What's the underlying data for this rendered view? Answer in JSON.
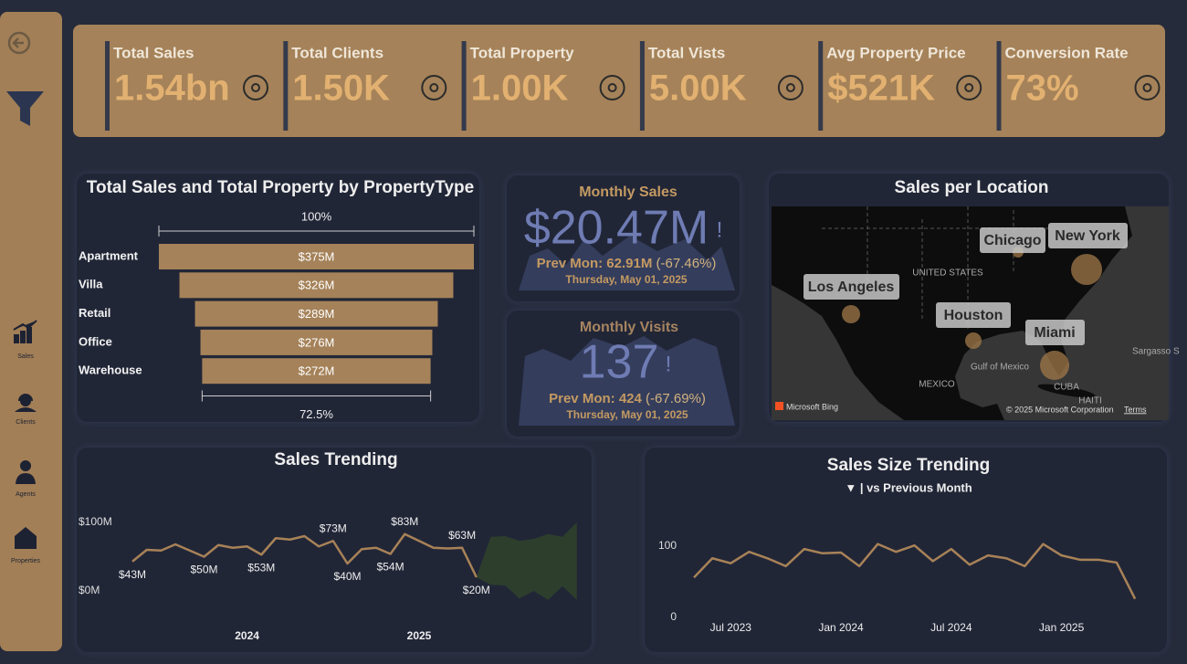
{
  "sidebar": {
    "items": [
      "Sales",
      "Clients",
      "Agents",
      "Properties"
    ]
  },
  "kpis": [
    {
      "label": "Total Sales",
      "value": "1.54bn"
    },
    {
      "label": "Total Clients",
      "value": "1.50K"
    },
    {
      "label": "Total Property",
      "value": "1.00K"
    },
    {
      "label": "Total Vists",
      "value": "5.00K"
    },
    {
      "label": "Avg Property Price",
      "value": "$521K"
    },
    {
      "label": "Conversion Rate",
      "value": "73%"
    }
  ],
  "cards": [
    {
      "title": "Monthly Sales",
      "value": "$20.47M",
      "flag": "!",
      "prev_label": "Prev Mon:",
      "prev_value": "62.91M",
      "change": "(-67.46%)",
      "date": "Thursday, May 01, 2025"
    },
    {
      "title": "Monthly Visits",
      "value": "137",
      "flag": "!",
      "prev_label": "Prev Mon:",
      "prev_value": "424",
      "change": "(-67.69%)",
      "date": "Thursday, May 01, 2025"
    }
  ],
  "map": {
    "title": "Sales per Location",
    "cities": [
      "Chicago",
      "New York",
      "Los Angeles",
      "Houston",
      "Miami"
    ],
    "places": [
      "UNITED STATES",
      "MEXICO",
      "Gulf of Mexico",
      "CUBA",
      "Sargasso S",
      "HAITI"
    ],
    "provider": "Microsoft Bing",
    "copyright": "© 2025 Microsoft Corporation",
    "terms": "Terms"
  },
  "chart_data": [
    {
      "type": "funnel",
      "title": "Total Sales and Total Property by PropertyType",
      "categories": [
        "Apartment",
        "Villa",
        "Retail",
        "Office",
        "Warehouse"
      ],
      "values": [
        375,
        326,
        289,
        276,
        272
      ],
      "value_labels": [
        "$375M",
        "$326M",
        "$289M",
        "$276M",
        "$272M"
      ],
      "top_label": "100%",
      "bottom_label": "72.5%",
      "color": "#a58259"
    },
    {
      "type": "line",
      "title": "Sales Trending",
      "categories": [
        null,
        null,
        null,
        null,
        null,
        null,
        null,
        null,
        "2024",
        null,
        null,
        null,
        null,
        null,
        null,
        null,
        null,
        null,
        null,
        null,
        "2025",
        null,
        null,
        null,
        null,
        null,
        null,
        null,
        null,
        null,
        null,
        null
      ],
      "values": [
        43,
        60,
        59,
        68,
        59,
        50,
        67,
        63,
        65,
        53,
        77,
        75,
        80,
        65,
        73,
        40,
        61,
        63,
        54,
        83,
        73,
        63,
        62,
        63,
        20,
        null,
        null,
        null,
        null,
        null,
        null,
        null
      ],
      "value_labels": [
        "$43M",
        null,
        null,
        null,
        null,
        "$50M",
        null,
        null,
        null,
        "$53M",
        null,
        null,
        null,
        null,
        "$73M",
        "$40M",
        null,
        null,
        "$54M",
        "$83M",
        null,
        null,
        null,
        "$63M",
        "$20M",
        null,
        null,
        null,
        null,
        null,
        null,
        null
      ],
      "color": "#a88257",
      "ylim": [
        0,
        100
      ],
      "yticks": [
        {
          "value": 0,
          "label": "$0M"
        },
        {
          "value": 100,
          "label": "$100M"
        }
      ],
      "forecast": {
        "color": "#2d3f2c",
        "upper": [
          null,
          null,
          null,
          null,
          null,
          null,
          null,
          null,
          null,
          null,
          null,
          null,
          null,
          null,
          null,
          null,
          null,
          null,
          null,
          null,
          null,
          null,
          null,
          null,
          20,
          79,
          80,
          73,
          76,
          83,
          79,
          100
        ],
        "lower": [
          null,
          null,
          null,
          null,
          null,
          null,
          null,
          null,
          null,
          null,
          null,
          null,
          null,
          null,
          null,
          null,
          null,
          null,
          null,
          null,
          null,
          null,
          null,
          null,
          20,
          9,
          8,
          -11,
          0,
          -13,
          7,
          -13
        ]
      }
    },
    {
      "type": "line",
      "title": "Sales Size Trending",
      "subtitle": "▼  |  vs Previous Month",
      "categories": [
        null,
        null,
        "Jul 2023",
        null,
        null,
        null,
        null,
        null,
        "Jan 2024",
        null,
        null,
        null,
        null,
        null,
        "Jul 2024",
        null,
        null,
        null,
        null,
        null,
        "Jan 2025",
        null,
        null,
        null,
        null
      ],
      "values": [
        56,
        83,
        76,
        92,
        83,
        72,
        96,
        90,
        91,
        72,
        103,
        92,
        101,
        79,
        96,
        74,
        87,
        83,
        72,
        103,
        87,
        81,
        81,
        77,
        26
      ],
      "color": "#a88257",
      "ylim": [
        0,
        100
      ],
      "yticks": [
        0,
        100
      ]
    }
  ]
}
